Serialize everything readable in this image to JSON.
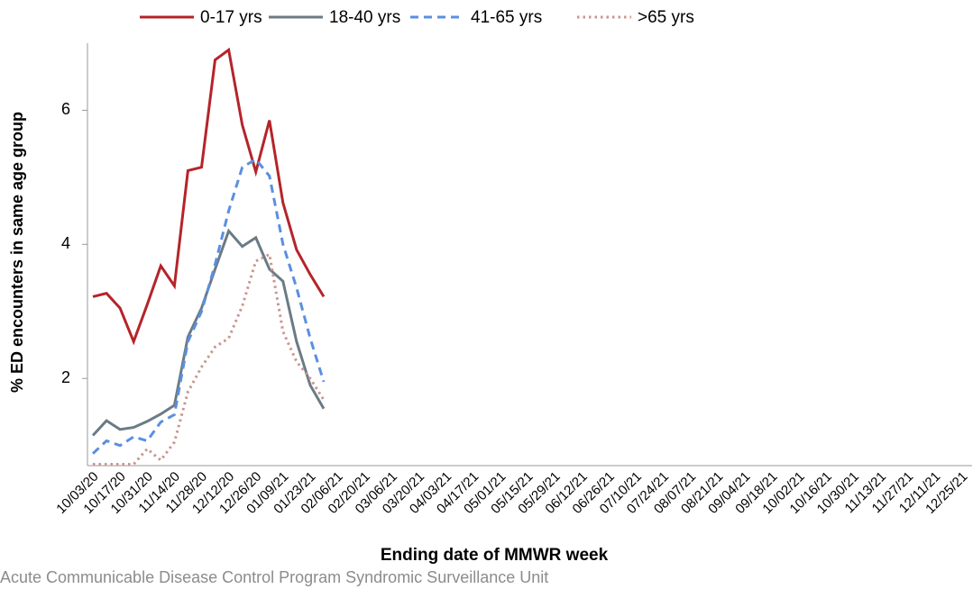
{
  "chart_data": {
    "type": "line",
    "x_label": "Ending date of MMWR week",
    "y_label": "% ED encounters in same age group",
    "source": "Acute Communicable Disease Control Program Syndromic Surveillance Unit",
    "categories": [
      "10/03/20",
      null,
      "10/17/20",
      null,
      "10/31/20",
      null,
      "11/14/20",
      null,
      "11/28/20",
      null,
      "12/12/20",
      null,
      "12/26/20",
      null,
      "01/09/21",
      null,
      "01/23/21",
      null,
      "02/06/21",
      null,
      "02/20/21",
      null,
      "03/06/21",
      null,
      "03/20/21",
      null,
      "04/03/21",
      null,
      "04/17/21",
      null,
      "05/01/21",
      null,
      "05/15/21",
      null,
      "05/29/21",
      null,
      "06/12/21",
      null,
      "06/26/21",
      null,
      "07/10/21",
      null,
      "07/24/21",
      null,
      "08/07/21",
      null,
      "08/21/21",
      null,
      "09/04/21",
      null,
      "09/18/21",
      null,
      "10/02/21",
      null,
      "10/16/21",
      null,
      "10/30/21",
      null,
      "11/13/21",
      null,
      "11/27/21",
      null,
      "12/11/21",
      null,
      "12/25/21"
    ],
    "series": [
      {
        "name": "0-17 yrs",
        "color": "#b5242a",
        "dash": "solid",
        "values": [
          3.22,
          3.27,
          3.05,
          2.55,
          3.1,
          3.68,
          3.38,
          5.1,
          5.15,
          6.75,
          6.9,
          5.78,
          5.08,
          5.85,
          4.62,
          3.92,
          3.55,
          3.22,
          null,
          null,
          null,
          null,
          null,
          null,
          null,
          null,
          null,
          null,
          null,
          null,
          null,
          null,
          null,
          null,
          null,
          null,
          null,
          null,
          null,
          null,
          null,
          null,
          null,
          null,
          null,
          null,
          null,
          null,
          null,
          null,
          null,
          null,
          null,
          null,
          null,
          null,
          null,
          null,
          null,
          null,
          null,
          null,
          null,
          null,
          null
        ]
      },
      {
        "name": "18-40 yrs",
        "color": "#6b7b86",
        "dash": "solid",
        "values": [
          1.15,
          1.37,
          1.24,
          1.27,
          1.36,
          1.47,
          1.6,
          2.62,
          3.05,
          3.63,
          4.2,
          3.97,
          4.1,
          3.63,
          3.45,
          2.55,
          1.9,
          1.55,
          null,
          null,
          null,
          null,
          null,
          null,
          null,
          null,
          null,
          null,
          null,
          null,
          null,
          null,
          null,
          null,
          null,
          null,
          null,
          null,
          null,
          null,
          null,
          null,
          null,
          null,
          null,
          null,
          null,
          null,
          null,
          null,
          null,
          null,
          null,
          null,
          null,
          null,
          null,
          null,
          null,
          null,
          null,
          null,
          null,
          null,
          null
        ]
      },
      {
        "name": "41-65 yrs",
        "color": "#5b8fe0",
        "dash": "dashed",
        "values": [
          0.88,
          1.07,
          1.0,
          1.13,
          1.07,
          1.35,
          1.46,
          2.55,
          3.0,
          3.7,
          4.5,
          5.15,
          5.27,
          5.02,
          4.0,
          3.35,
          2.6,
          1.95,
          null,
          null,
          null,
          null,
          null,
          null,
          null,
          null,
          null,
          null,
          null,
          null,
          null,
          null,
          null,
          null,
          null,
          null,
          null,
          null,
          null,
          null,
          null,
          null,
          null,
          null,
          null,
          null,
          null,
          null,
          null,
          null,
          null,
          null,
          null,
          null,
          null,
          null,
          null,
          null,
          null,
          null,
          null,
          null,
          null,
          null,
          null
        ]
      },
      {
        "name": ">65 yrs",
        "color": "#c9958f",
        "dash": "dotted",
        "values": [
          0.72,
          0.72,
          0.72,
          0.72,
          0.95,
          0.78,
          1.05,
          1.8,
          2.17,
          2.47,
          2.6,
          3.08,
          3.75,
          3.85,
          2.7,
          2.25,
          2.0,
          1.68,
          null,
          null,
          null,
          null,
          null,
          null,
          null,
          null,
          null,
          null,
          null,
          null,
          null,
          null,
          null,
          null,
          null,
          null,
          null,
          null,
          null,
          null,
          null,
          null,
          null,
          null,
          null,
          null,
          null,
          null,
          null,
          null,
          null,
          null,
          null,
          null,
          null,
          null,
          null,
          null,
          null,
          null,
          null,
          null,
          null,
          null,
          null
        ]
      }
    ],
    "ylim": [
      0.7,
      7.0
    ],
    "yticks": [
      2,
      4,
      6
    ],
    "legend": "top"
  }
}
